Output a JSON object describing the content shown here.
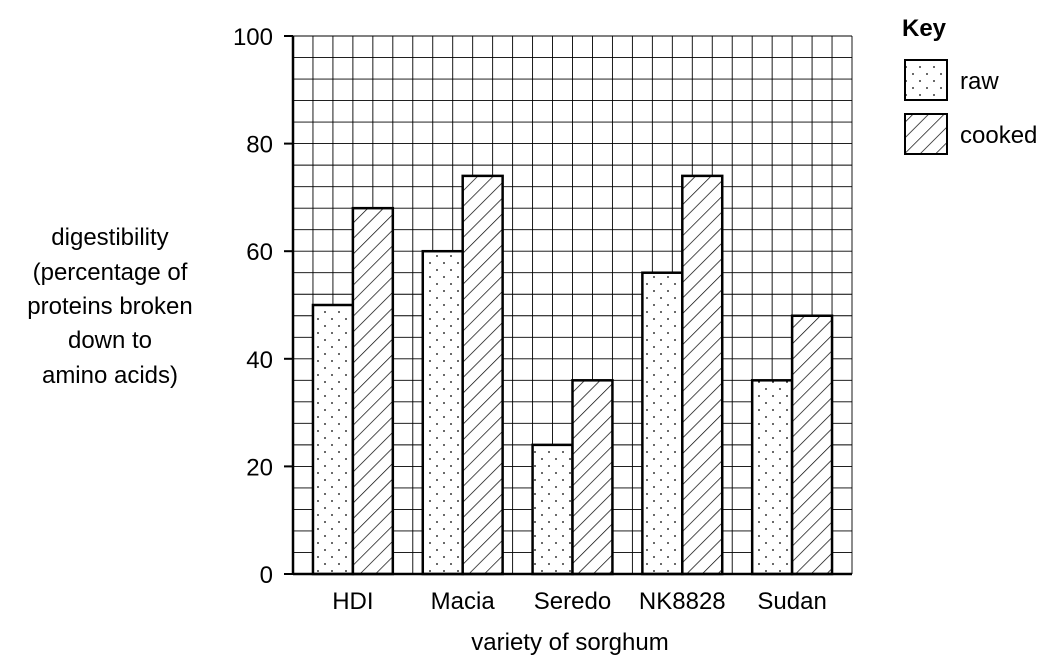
{
  "chart_data": {
    "type": "bar",
    "categories": [
      "HDI",
      "Macia",
      "Seredo",
      "NK8828",
      "Sudan"
    ],
    "series": [
      {
        "name": "raw",
        "values": [
          50,
          60,
          24,
          56,
          36
        ],
        "pattern": "dots"
      },
      {
        "name": "cooked",
        "values": [
          68,
          74,
          36,
          74,
          48
        ],
        "pattern": "hatch"
      }
    ],
    "ylim": [
      0,
      100
    ],
    "y_ticks": [
      0,
      20,
      40,
      60,
      80,
      100
    ],
    "y_minor_step": 4,
    "x_grid_columns": 28,
    "grid": true,
    "xlabel": "variety of sorghum",
    "ylabel_lines": [
      "digestibility",
      "(percentage of",
      "proteins broken",
      "down to",
      "amino acids)"
    ],
    "legend": {
      "title": "Key",
      "placement": "top-right",
      "entries": [
        "raw",
        "cooked"
      ]
    }
  }
}
